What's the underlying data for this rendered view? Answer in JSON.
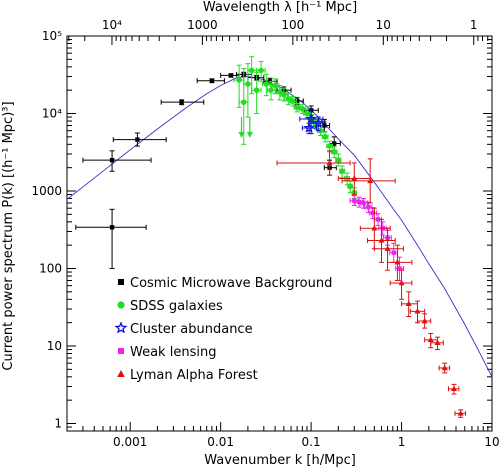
{
  "chart_data": {
    "type": "scatter",
    "xlabel": "Wavenumber k [h/Mpc]",
    "ylabel": "Current power spectrum P(k) [(h⁻¹ Mpc)³]",
    "top_xlabel": "Wavelength λ [h⁻¹ Mpc]",
    "x_scale": "log",
    "y_scale": "log",
    "xlim": [
      0.0002,
      10
    ],
    "ylim": [
      0.8,
      100000
    ],
    "grid": false,
    "legend_position": "lower-left",
    "bottom_ticks": [
      {
        "value": 0.001,
        "label": "0.001"
      },
      {
        "value": 0.01,
        "label": "0.01"
      },
      {
        "value": 0.1,
        "label": "0.1"
      },
      {
        "value": 1,
        "label": "1"
      },
      {
        "value": 10,
        "label": "10"
      }
    ],
    "top_ticks": [
      {
        "value": 10000,
        "label": "10⁴"
      },
      {
        "value": 1000,
        "label": "1000"
      },
      {
        "value": 100,
        "label": "100"
      },
      {
        "value": 10,
        "label": "10"
      },
      {
        "value": 1,
        "label": "1"
      }
    ],
    "left_ticks": [
      {
        "value": 1,
        "label": "1"
      },
      {
        "value": 10,
        "label": "10"
      },
      {
        "value": 100,
        "label": "100"
      },
      {
        "value": 1000,
        "label": "1000"
      },
      {
        "value": 10000,
        "label": "10⁴"
      },
      {
        "value": 100000,
        "label": "10⁵"
      }
    ],
    "model_curve": {
      "color": "#3333cc",
      "x": [
        0.0002,
        0.0005,
        0.001,
        0.002,
        0.004,
        0.007,
        0.01,
        0.015,
        0.02,
        0.03,
        0.05,
        0.08,
        0.12,
        0.2,
        0.3,
        0.5,
        0.8,
        1,
        1.5,
        2,
        3,
        5,
        7,
        10
      ],
      "y": [
        780,
        1800,
        3400,
        6300,
        11500,
        18000,
        23000,
        29000,
        30000,
        27500,
        20500,
        14000,
        9000,
        4700,
        2900,
        1300,
        600,
        420,
        200,
        115,
        55,
        19,
        9,
        4
      ]
    },
    "series": [
      {
        "name": "Cosmic Microwave Background",
        "color": "#000000",
        "marker": "square",
        "points": [
          {
            "x": 0.00063,
            "y": 340,
            "ylo": 100,
            "yhi": 580,
            "xlo": 0.00025,
            "xhi": 0.0015
          },
          {
            "x": 0.00063,
            "y": 2500,
            "ylo": 1800,
            "yhi": 3300,
            "xlo": 0.0003,
            "xhi": 0.0017
          },
          {
            "x": 0.0012,
            "y": 4600,
            "ylo": 3800,
            "yhi": 5600,
            "xlo": 0.00065,
            "xhi": 0.0025
          },
          {
            "x": 0.0037,
            "y": 14000,
            "ylo": 13000,
            "yhi": 15000,
            "xlo": 0.0022,
            "xhi": 0.0065
          },
          {
            "x": 0.008,
            "y": 26500,
            "ylo": 25000,
            "yhi": 28000,
            "xlo": 0.0055,
            "xhi": 0.011
          },
          {
            "x": 0.013,
            "y": 31000,
            "ylo": 29500,
            "yhi": 32500,
            "xlo": 0.01,
            "xhi": 0.016
          },
          {
            "x": 0.018,
            "y": 32000,
            "ylo": 30000,
            "yhi": 34000,
            "xlo": 0.015,
            "xhi": 0.022
          },
          {
            "x": 0.025,
            "y": 29000,
            "ylo": 27000,
            "yhi": 31000,
            "xlo": 0.02,
            "xhi": 0.03
          },
          {
            "x": 0.035,
            "y": 26000,
            "ylo": 24000,
            "yhi": 28500,
            "xlo": 0.03,
            "xhi": 0.042
          },
          {
            "x": 0.05,
            "y": 20000,
            "ylo": 18000,
            "yhi": 22000,
            "xlo": 0.042,
            "xhi": 0.06
          },
          {
            "x": 0.07,
            "y": 14500,
            "ylo": 13000,
            "yhi": 16000,
            "xlo": 0.06,
            "xhi": 0.082
          },
          {
            "x": 0.1,
            "y": 11000,
            "ylo": 9500,
            "yhi": 12500,
            "xlo": 0.085,
            "xhi": 0.12
          },
          {
            "x": 0.14,
            "y": 7000,
            "ylo": 5800,
            "yhi": 8400,
            "xlo": 0.12,
            "xhi": 0.16
          },
          {
            "x": 0.18,
            "y": 4100,
            "ylo": 3300,
            "yhi": 5000,
            "xlo": 0.16,
            "xhi": 0.21
          },
          {
            "x": 0.16,
            "y": 2000,
            "ylo": 1600,
            "yhi": 2500,
            "xlo": 0.14,
            "xhi": 0.19
          }
        ]
      },
      {
        "name": "SDSS galaxies",
        "color": "#22dd22",
        "marker": "circle",
        "points": [
          {
            "x": 0.016,
            "y": 27000,
            "ylo": 12000,
            "yhi": 42000,
            "xlo": 0.014,
            "xhi": 0.018
          },
          {
            "x": 0.018,
            "y": 14000,
            "ylo": 4000,
            "yhi": 38000,
            "xlo": 0.016,
            "xhi": 0.02
          },
          {
            "x": 0.02,
            "y": 24000,
            "ylo": 9000,
            "yhi": 44000,
            "xlo": 0.018,
            "xhi": 0.022
          },
          {
            "x": 0.022,
            "y": 36000,
            "ylo": 18000,
            "yhi": 54000,
            "xlo": 0.02,
            "xhi": 0.025
          },
          {
            "x": 0.025,
            "y": 20000,
            "ylo": 10000,
            "yhi": 34000,
            "xlo": 0.022,
            "xhi": 0.028
          },
          {
            "x": 0.028,
            "y": 36000,
            "ylo": 26000,
            "yhi": 47000,
            "xlo": 0.025,
            "xhi": 0.031
          },
          {
            "x": 0.032,
            "y": 24000,
            "ylo": 17000,
            "yhi": 32000,
            "xlo": 0.029,
            "xhi": 0.035
          },
          {
            "x": 0.036,
            "y": 20000,
            "ylo": 15000,
            "yhi": 26000,
            "xlo": 0.033,
            "xhi": 0.04
          },
          {
            "x": 0.04,
            "y": 23000,
            "ylo": 18000,
            "yhi": 28000,
            "xlo": 0.037,
            "xhi": 0.044
          },
          {
            "x": 0.045,
            "y": 19000,
            "ylo": 15000,
            "yhi": 23000,
            "xlo": 0.041,
            "xhi": 0.05
          },
          {
            "x": 0.05,
            "y": 17500,
            "ylo": 14500,
            "yhi": 21000,
            "xlo": 0.046,
            "xhi": 0.055
          },
          {
            "x": 0.056,
            "y": 15500,
            "ylo": 13000,
            "yhi": 18000,
            "xlo": 0.051,
            "xhi": 0.061
          },
          {
            "x": 0.063,
            "y": 14500,
            "ylo": 12500,
            "yhi": 16500,
            "xlo": 0.058,
            "xhi": 0.069
          },
          {
            "x": 0.07,
            "y": 12000,
            "ylo": 10500,
            "yhi": 13500,
            "xlo": 0.065,
            "xhi": 0.076
          },
          {
            "x": 0.08,
            "y": 11500,
            "ylo": 10000,
            "yhi": 13000,
            "xlo": 0.074,
            "xhi": 0.087
          },
          {
            "x": 0.09,
            "y": 10000,
            "ylo": 8800,
            "yhi": 11500,
            "xlo": 0.083,
            "xhi": 0.098
          },
          {
            "x": 0.1,
            "y": 8500,
            "ylo": 7500,
            "yhi": 9700,
            "xlo": 0.093,
            "xhi": 0.108
          },
          {
            "x": 0.113,
            "y": 7200,
            "ylo": 6300,
            "yhi": 8200,
            "xlo": 0.105,
            "xhi": 0.122
          },
          {
            "x": 0.127,
            "y": 6000,
            "ylo": 5200,
            "yhi": 6900,
            "xlo": 0.118,
            "xhi": 0.137
          },
          {
            "x": 0.143,
            "y": 5000,
            "ylo": 4300,
            "yhi": 5800,
            "xlo": 0.133,
            "xhi": 0.154
          },
          {
            "x": 0.16,
            "y": 3800,
            "ylo": 3200,
            "yhi": 4400,
            "xlo": 0.149,
            "xhi": 0.172
          },
          {
            "x": 0.18,
            "y": 3200,
            "ylo": 2700,
            "yhi": 3700,
            "xlo": 0.168,
            "xhi": 0.194
          },
          {
            "x": 0.2,
            "y": 2500,
            "ylo": 2100,
            "yhi": 3000,
            "xlo": 0.187,
            "xhi": 0.214
          },
          {
            "x": 0.22,
            "y": 1800,
            "ylo": 1500,
            "yhi": 2100,
            "xlo": 0.207,
            "xhi": 0.235
          },
          {
            "x": 0.25,
            "y": 1450,
            "ylo": 1200,
            "yhi": 1700,
            "xlo": 0.235,
            "xhi": 0.265
          },
          {
            "x": 0.27,
            "y": 1150,
            "ylo": 950,
            "yhi": 1350,
            "xlo": 0.255,
            "xhi": 0.285
          },
          {
            "x": 0.3,
            "y": 950,
            "ylo": 800,
            "yhi": 1100,
            "xlo": 0.285,
            "xhi": 0.315
          }
        ],
        "upper_limits": [
          {
            "x": 0.017,
            "y": 9000,
            "y_arrow": 5000
          },
          {
            "x": 0.021,
            "y": 9000,
            "y_arrow": 5000
          }
        ]
      },
      {
        "name": "Cluster abundance",
        "color": "#1111dd",
        "marker": "star",
        "points": [
          {
            "x": 0.1,
            "y": 8500,
            "ylo": 5500,
            "yhi": 11500,
            "xlo": 0.075,
            "xhi": 0.135
          },
          {
            "x": 0.12,
            "y": 7500,
            "ylo": 6000,
            "yhi": 9000,
            "xlo": 0.1,
            "xhi": 0.145
          },
          {
            "x": 0.095,
            "y": 6500,
            "ylo": 5500,
            "yhi": 7500,
            "xlo": 0.08,
            "xhi": 0.115
          }
        ]
      },
      {
        "name": "Weak lensing",
        "color": "#ee22ee",
        "marker": "square",
        "points": [
          {
            "x": 0.3,
            "y": 750,
            "ylo": 650,
            "yhi": 870,
            "xlo": 0.27,
            "xhi": 0.33
          },
          {
            "x": 0.34,
            "y": 720,
            "ylo": 620,
            "yhi": 830,
            "xlo": 0.31,
            "xhi": 0.37
          },
          {
            "x": 0.38,
            "y": 700,
            "ylo": 600,
            "yhi": 800,
            "xlo": 0.35,
            "xhi": 0.42
          },
          {
            "x": 0.43,
            "y": 620,
            "ylo": 530,
            "yhi": 720,
            "xlo": 0.39,
            "xhi": 0.47
          },
          {
            "x": 0.48,
            "y": 520,
            "ylo": 440,
            "yhi": 610,
            "xlo": 0.44,
            "xhi": 0.53
          },
          {
            "x": 0.55,
            "y": 430,
            "ylo": 360,
            "yhi": 510,
            "xlo": 0.5,
            "xhi": 0.6
          },
          {
            "x": 0.62,
            "y": 330,
            "ylo": 270,
            "yhi": 400,
            "xlo": 0.56,
            "xhi": 0.68
          },
          {
            "x": 0.7,
            "y": 250,
            "ylo": 200,
            "yhi": 310,
            "xlo": 0.63,
            "xhi": 0.77
          },
          {
            "x": 0.82,
            "y": 160,
            "ylo": 120,
            "yhi": 210,
            "xlo": 0.74,
            "xhi": 0.9
          },
          {
            "x": 0.95,
            "y": 100,
            "ylo": 70,
            "yhi": 140,
            "xlo": 0.86,
            "xhi": 1.05
          }
        ]
      },
      {
        "name": "Lyman Alpha Forest",
        "color": "#dd1111",
        "marker": "triangle",
        "points": [
          {
            "x": 0.16,
            "y": 2300,
            "ylo": 1600,
            "yhi": 3300,
            "xlo": 0.042,
            "xhi": 0.27
          },
          {
            "x": 0.3,
            "y": 1450,
            "ylo": 900,
            "yhi": 2300,
            "xlo": 0.2,
            "xhi": 0.45
          },
          {
            "x": 0.45,
            "y": 1350,
            "ylo": 700,
            "yhi": 2600,
            "xlo": 0.22,
            "xhi": 0.85
          },
          {
            "x": 0.5,
            "y": 330,
            "ylo": 180,
            "yhi": 600,
            "xlo": 0.35,
            "xhi": 0.75
          },
          {
            "x": 0.6,
            "y": 230,
            "ylo": 120,
            "yhi": 430,
            "xlo": 0.42,
            "xhi": 0.85
          },
          {
            "x": 0.7,
            "y": 180,
            "ylo": 95,
            "yhi": 330,
            "xlo": 0.5,
            "xhi": 1.05
          },
          {
            "x": 0.9,
            "y": 120,
            "ylo": 70,
            "yhi": 200,
            "xlo": 0.7,
            "xhi": 1.3
          },
          {
            "x": 1,
            "y": 65,
            "ylo": 40,
            "yhi": 95,
            "xlo": 0.75,
            "xhi": 1.3
          },
          {
            "x": 1.2,
            "y": 35,
            "ylo": 24,
            "yhi": 50,
            "xlo": 1.0,
            "xhi": 1.5
          },
          {
            "x": 1.5,
            "y": 28,
            "ylo": 20,
            "yhi": 38,
            "xlo": 1.25,
            "xhi": 1.8
          },
          {
            "x": 1.8,
            "y": 21,
            "ylo": 17,
            "yhi": 26,
            "xlo": 1.5,
            "xhi": 2.1
          },
          {
            "x": 2.1,
            "y": 12,
            "ylo": 9.5,
            "yhi": 14.5,
            "xlo": 1.8,
            "xhi": 2.5
          },
          {
            "x": 2.5,
            "y": 11,
            "ylo": 9,
            "yhi": 13,
            "xlo": 2.1,
            "xhi": 2.9
          },
          {
            "x": 3,
            "y": 5.2,
            "ylo": 4.5,
            "yhi": 6,
            "xlo": 2.6,
            "xhi": 3.4
          },
          {
            "x": 3.8,
            "y": 2.8,
            "ylo": 2.4,
            "yhi": 3.2,
            "xlo": 3.3,
            "xhi": 4.3
          },
          {
            "x": 4.5,
            "y": 1.35,
            "ylo": 1.2,
            "yhi": 1.5,
            "xlo": 3.9,
            "xhi": 5.1
          }
        ]
      }
    ]
  }
}
